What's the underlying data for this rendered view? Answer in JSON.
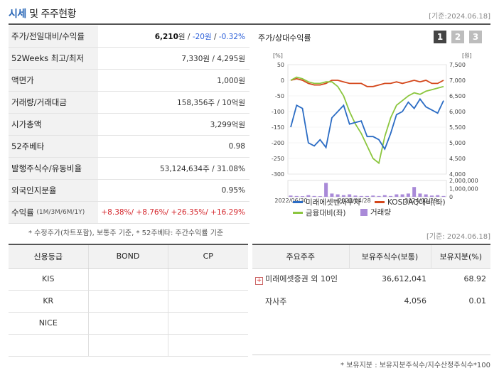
{
  "header": {
    "title_accent": "시세",
    "title_rest": "및 주주현황",
    "date": "[기준:2024.06.18]"
  },
  "quote": {
    "rows": [
      {
        "label": "주가/전일대비/수익률",
        "price": "6,210",
        "unit": "원",
        "sep1": " / ",
        "change": "-20원",
        "sep2": " / ",
        "rate": "-0.32%"
      },
      {
        "label": "52Weeks 최고/최저",
        "value": "7,330원 / 4,295원"
      },
      {
        "label": "액면가",
        "value": "1,000원"
      },
      {
        "label": "거래량/거래대금",
        "value": "158,356주 / 10억원"
      },
      {
        "label": "시가총액",
        "value": "3,299억원"
      },
      {
        "label": "52주베타",
        "value": "0.98"
      },
      {
        "label": "발행주식수/유동비율",
        "value": "53,124,634주 / 31.08%"
      },
      {
        "label": "외국인지분율",
        "value": "0.95%"
      },
      {
        "label": "수익률",
        "label_sub": "(1M/3M/6M/1Y)",
        "r1": "+8.38%/",
        "r2": " +8.76%/",
        "r3": " +26.35%/",
        "r4": " +16.29%"
      }
    ],
    "note": "* 수정주가(차트포함), 보통주 기준, * 52주베타: 주간수익률 기준"
  },
  "chart": {
    "title": "주가/상대수익률",
    "tabs": [
      "1",
      "2",
      "3"
    ],
    "left_unit": "[%]",
    "right_unit": "[원]",
    "left_ticks": [
      "50",
      "0",
      "-50",
      "-100",
      "-150",
      "-200",
      "-250",
      "-300"
    ],
    "right_ticks": [
      "7,500",
      "7,000",
      "6,500",
      "6,000",
      "5,500",
      "5,000",
      "4,500",
      "4,000"
    ],
    "vol_ticks": [
      "2,000,000",
      "1,000,000",
      "0"
    ],
    "x_ticks": [
      "2022/06/30",
      "2023/04/28",
      "2024/02/29"
    ],
    "legend": [
      {
        "label": "미래에셋벤처투자",
        "color": "#2b6cc4"
      },
      {
        "label": "KOSDAQ대비(좌)",
        "color": "#d4471b"
      },
      {
        "label": "금융대비(좌)",
        "color": "#8cc63f"
      },
      {
        "label": "거래량",
        "color": "#a98ad8"
      }
    ]
  },
  "chart_data": {
    "type": "line",
    "ylim_left": [
      -300,
      50
    ],
    "ylim_right": [
      4000,
      7500
    ],
    "ylim_volume": [
      0,
      2000000
    ],
    "series": [
      {
        "name": "미래에셋벤처투자",
        "axis": "right",
        "values": [
          5500,
          6200,
          6100,
          5000,
          4900,
          5100,
          4850,
          5800,
          6000,
          6200,
          5600,
          5650,
          5700,
          5200,
          5200,
          5100,
          4800,
          5300,
          5900,
          6000,
          6300,
          6100,
          6400,
          6150,
          6050,
          5950,
          6350
        ]
      },
      {
        "name": "KOSDAQ대비(좌)",
        "axis": "left",
        "values": [
          0,
          5,
          0,
          -10,
          -15,
          -15,
          -10,
          0,
          0,
          -5,
          -10,
          -10,
          -10,
          -20,
          -20,
          -15,
          -10,
          -10,
          -5,
          -10,
          -5,
          0,
          -5,
          0,
          -10,
          -10,
          0
        ]
      },
      {
        "name": "금융대비(좌)",
        "axis": "left",
        "values": [
          0,
          10,
          5,
          -5,
          -10,
          -10,
          -5,
          -5,
          -20,
          -50,
          -100,
          -140,
          -170,
          -210,
          -250,
          -265,
          -180,
          -120,
          -80,
          -65,
          -50,
          -40,
          -45,
          -35,
          -30,
          -25,
          -20
        ]
      },
      {
        "name": "거래량",
        "axis": "volume",
        "values": [
          150000,
          100000,
          80000,
          200000,
          100000,
          80000,
          1700000,
          400000,
          300000,
          200000,
          300000,
          150000,
          100000,
          100000,
          150000,
          100000,
          200000,
          100000,
          300000,
          300000,
          400000,
          1200000,
          400000,
          300000,
          150000,
          200000,
          100000
        ]
      }
    ]
  },
  "date2": "[기준: 2024.06.18]",
  "credit": {
    "headers": [
      "신용등급",
      "BOND",
      "CP"
    ],
    "rows": [
      [
        "KIS",
        "",
        ""
      ],
      [
        "KR",
        "",
        ""
      ],
      [
        "NICE",
        "",
        ""
      ],
      [
        "",
        "",
        ""
      ]
    ]
  },
  "holders": {
    "headers": [
      "주요주주",
      "보유주식수(보통)",
      "보유지분(%)"
    ],
    "rows": [
      {
        "name": "미래에셋증권 외 10인",
        "shares": "36,612,041",
        "pct": "68.92",
        "expand": "+"
      },
      {
        "name": "자사주",
        "shares": "4,056",
        "pct": "0.01"
      }
    ],
    "note": "* 보유지분 : 보유지분주식수/지수산정주식수*100"
  }
}
